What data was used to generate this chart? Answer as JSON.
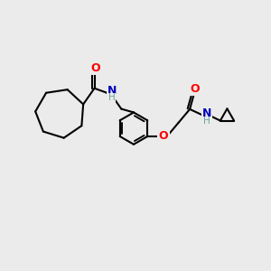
{
  "background_color": "#ebebeb",
  "line_color": "#000000",
  "bond_width": 1.5,
  "atom_colors": {
    "O": "#ff0000",
    "N": "#0000b8",
    "H": "#6fa0a0",
    "C": "#000000"
  },
  "figsize": [
    3.0,
    3.0
  ],
  "dpi": 100
}
